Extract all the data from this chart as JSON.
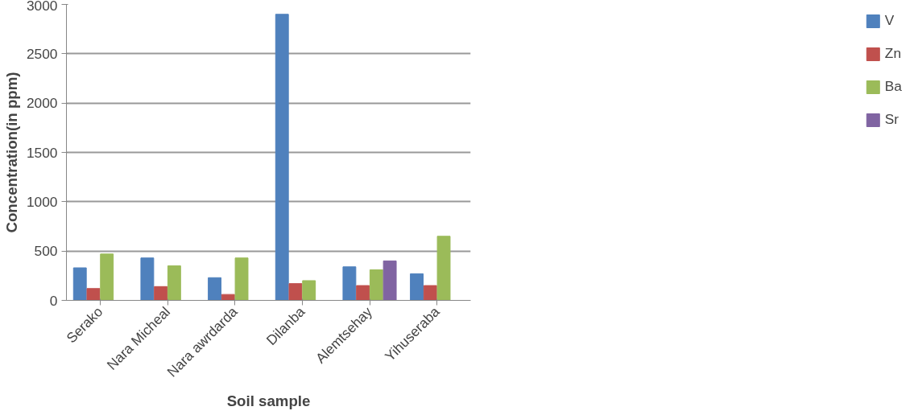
{
  "chart_data": {
    "type": "bar",
    "xlabel": "Soil sample",
    "ylabel": "Concentration(in ppm)",
    "categories": [
      "Serako",
      "Nara Micheal",
      "Nara awrdarda",
      "Dilanba",
      "Alemtsehay",
      "Yihuseraba"
    ],
    "series": [
      {
        "name": "V",
        "color": "#4f81bd",
        "values": [
          330,
          430,
          230,
          2900,
          340,
          270
        ]
      },
      {
        "name": "Zn",
        "color": "#c0504d",
        "values": [
          120,
          140,
          60,
          170,
          150,
          150
        ]
      },
      {
        "name": "Ba",
        "color": "#9bbb59",
        "values": [
          470,
          350,
          430,
          200,
          310,
          650
        ]
      },
      {
        "name": "Sr",
        "color": "#8064a2",
        "values": [
          0,
          0,
          0,
          0,
          400,
          0
        ]
      }
    ],
    "ylim": [
      0,
      3000
    ],
    "yticks": [
      0,
      500,
      1000,
      1500,
      2000,
      2500,
      3000
    ],
    "grid": "y",
    "legend": "right"
  }
}
